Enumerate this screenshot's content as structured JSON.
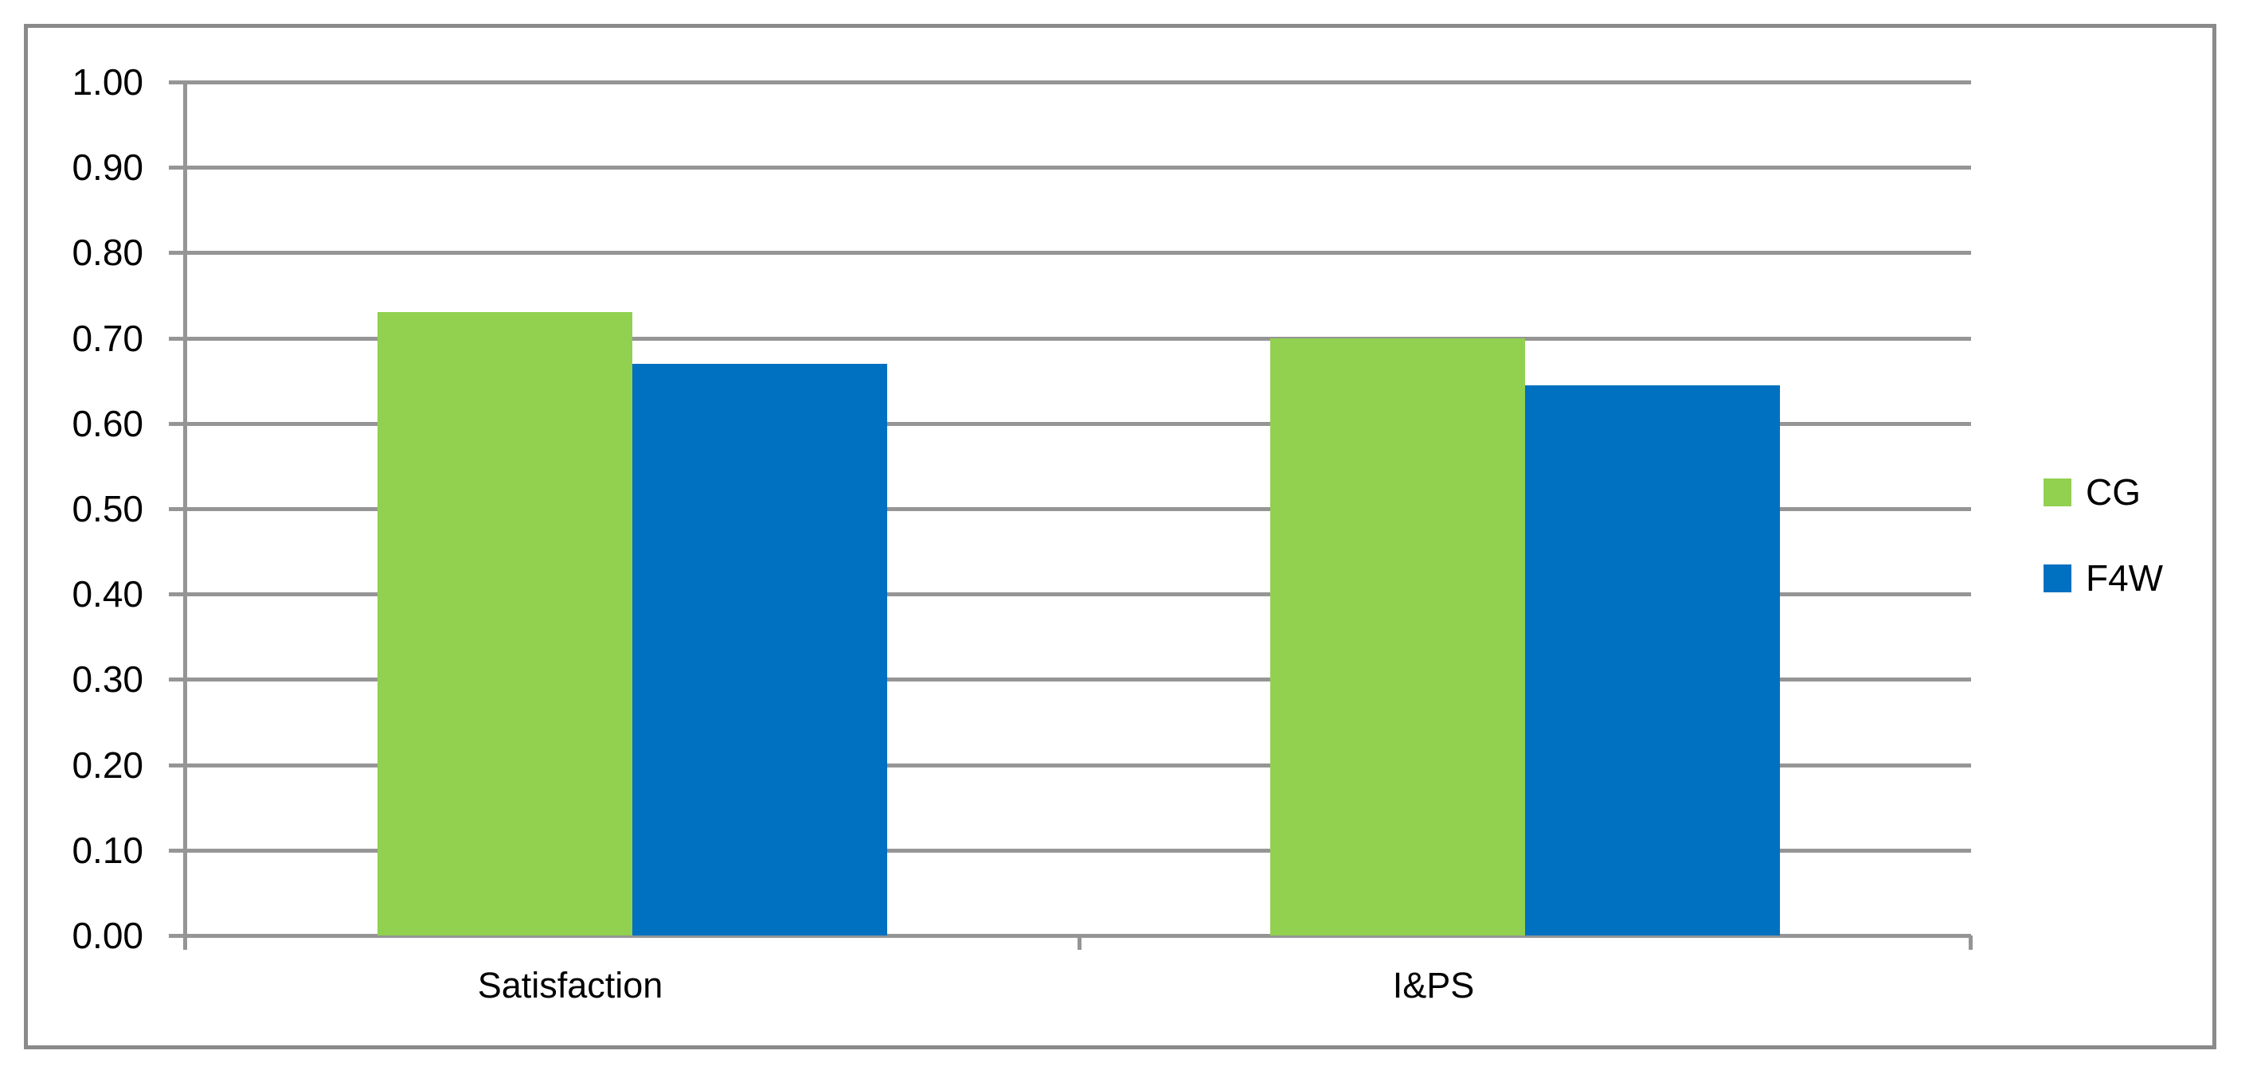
{
  "chart_data": {
    "type": "bar",
    "categories": [
      "Satisfaction",
      "I&PS"
    ],
    "series": [
      {
        "name": "CG",
        "color": "#92D050",
        "values": [
          0.73,
          0.7
        ]
      },
      {
        "name": "F4W",
        "color": "#0070C0",
        "values": [
          0.67,
          0.645
        ]
      }
    ],
    "title": "",
    "xlabel": "",
    "ylabel": "",
    "ylim": [
      0,
      1
    ],
    "ytick_step": 0.1,
    "ytick_labels": [
      "0.00",
      "0.10",
      "0.20",
      "0.30",
      "0.40",
      "0.50",
      "0.60",
      "0.70",
      "0.80",
      "0.90",
      "1.00"
    ],
    "grid": true,
    "legend_position": "right",
    "colors": {
      "grid": "#959595",
      "axis": "#959595",
      "border": "#8a8a8a",
      "text": "#000000",
      "background": "#ffffff"
    }
  }
}
